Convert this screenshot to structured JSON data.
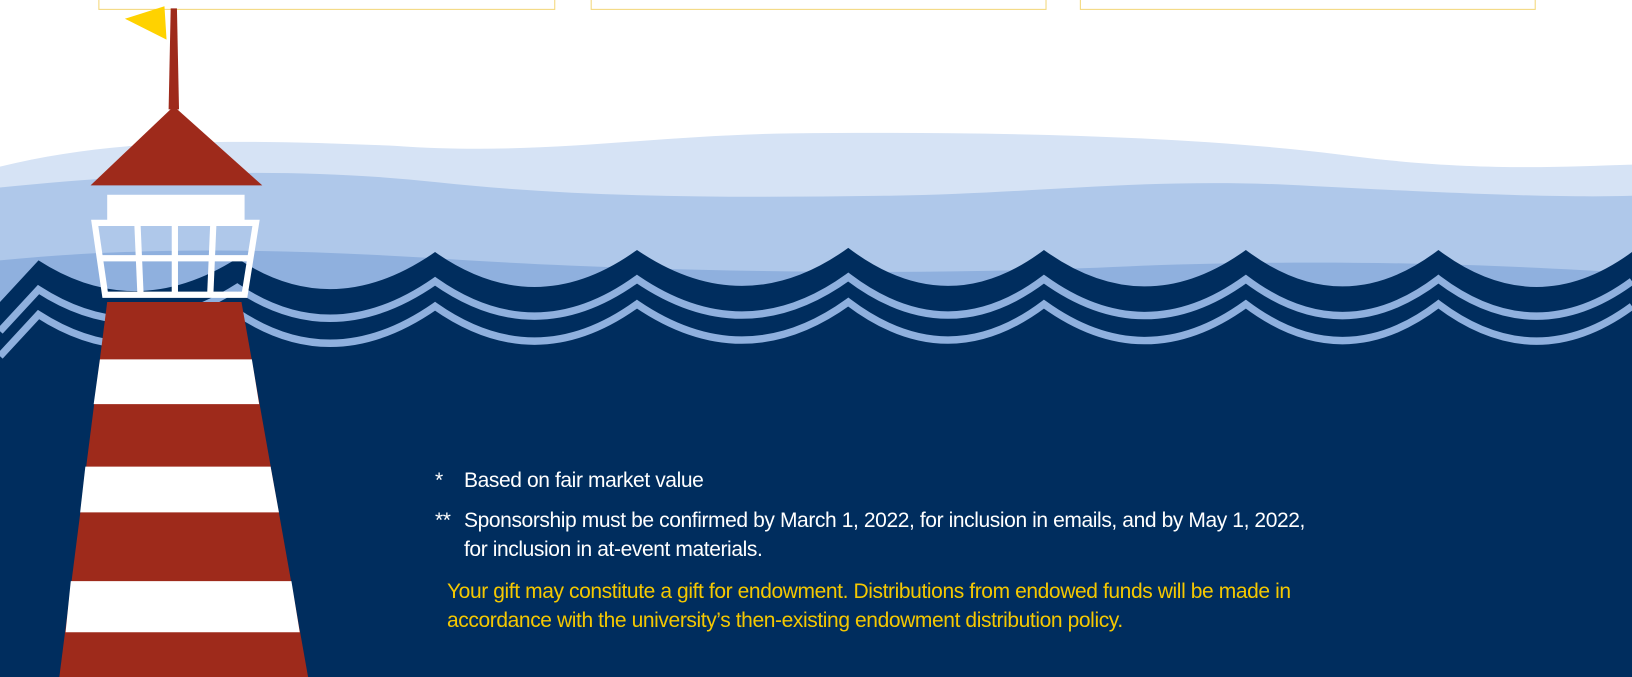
{
  "footnotes": [
    {
      "marker": "*",
      "text": "Based on fair market value"
    },
    {
      "marker": "**",
      "text": "Sponsorship must be confirmed by March 1, 2022, for inclusion in emails, and by May 1, 2022, for inclusion in at-event materials."
    }
  ],
  "notice": "Your gift may constitute a gift for endowment. Distributions from endowed funds will be made in accordance with the university’s then-existing endowment distribution policy."
}
